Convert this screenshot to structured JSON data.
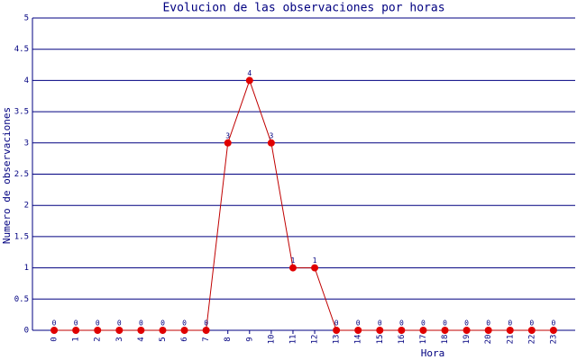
{
  "chart_data": {
    "type": "line",
    "title": "Evolucion de las observaciones por horas",
    "x_label": "Hora",
    "y_label": "Numero de observaciones",
    "categories": [
      "0",
      "1",
      "2",
      "3",
      "4",
      "5",
      "6",
      "7",
      "8",
      "9",
      "10",
      "11",
      "12",
      "13",
      "14",
      "15",
      "16",
      "17",
      "18",
      "19",
      "20",
      "21",
      "22",
      "23"
    ],
    "series": [
      {
        "name": "observaciones",
        "color": "#c00000",
        "values": [
          0,
          0,
          0,
          0,
          0,
          0,
          0,
          0,
          3,
          4,
          3,
          1,
          1,
          0,
          0,
          0,
          0,
          0,
          0,
          0,
          0,
          0,
          0,
          0
        ]
      }
    ],
    "ylim": [
      0,
      5
    ],
    "yticks": [
      0,
      0.5,
      1,
      1.5,
      2,
      2.5,
      3,
      3.5,
      4,
      4.5,
      5
    ],
    "grid": true,
    "grid_color": "#000080"
  }
}
